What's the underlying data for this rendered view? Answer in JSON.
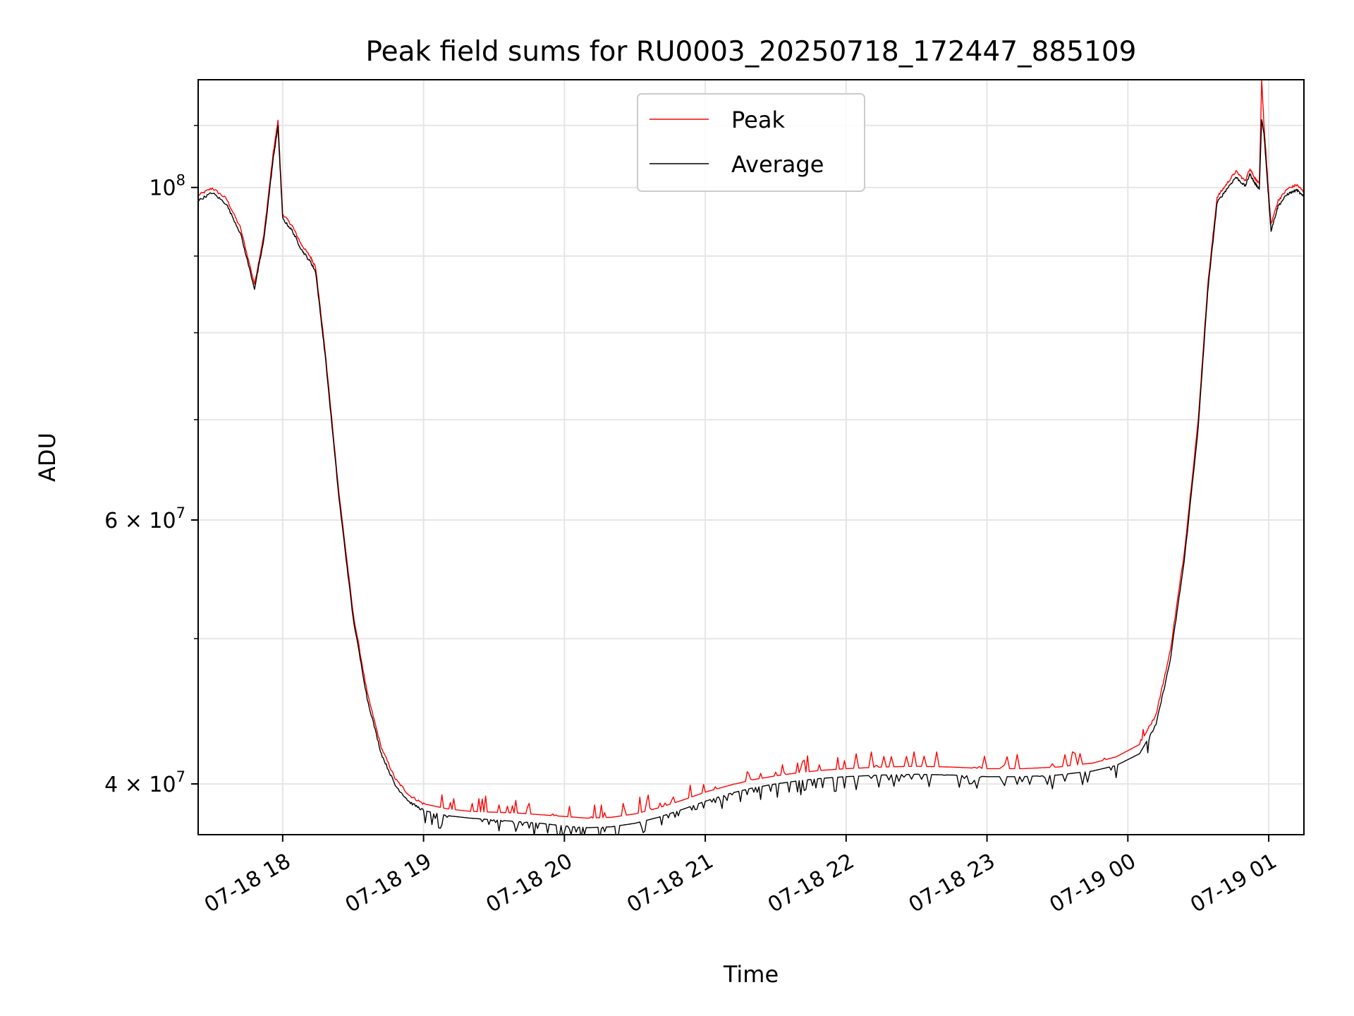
{
  "chart_data": {
    "type": "line",
    "title": "Peak field sums for RU0003_20250718_172447_885109",
    "xlabel": "Time",
    "ylabel": "ADU",
    "yscale": "log",
    "grid": true,
    "legend_position": "top-center",
    "xlim": [
      "2025-07-18 17:24",
      "2025-07-19 01:15"
    ],
    "ylim": [
      37000000,
      118000000
    ],
    "x_ticks": [
      "07-18 18",
      "07-18 19",
      "07-18 20",
      "07-18 21",
      "07-18 22",
      "07-18 23",
      "07-19 00",
      "07-19 01"
    ],
    "y_ticks": [
      {
        "value": 100000000,
        "base": "10",
        "exp": "8"
      },
      {
        "value": 60000000,
        "base": "6 × 10",
        "exp": "7"
      },
      {
        "value": 40000000,
        "base": "4 × 10",
        "exp": "7"
      }
    ],
    "series": [
      {
        "name": "Peak",
        "color": "#ff0000",
        "points": [
          [
            "2025-07-18 17:24",
            98800000
          ],
          [
            "2025-07-18 17:30",
            99900000
          ],
          [
            "2025-07-18 17:36",
            98300000
          ],
          [
            "2025-07-18 17:42",
            94000000
          ],
          [
            "2025-07-18 17:48",
            86200000
          ],
          [
            "2025-07-18 17:52",
            93000000
          ],
          [
            "2025-07-18 17:56",
            105500000
          ],
          [
            "2025-07-18 17:58",
            110800000
          ],
          [
            "2025-07-18 18:00",
            96000000
          ],
          [
            "2025-07-18 18:04",
            94300000
          ],
          [
            "2025-07-18 18:08",
            91600000
          ],
          [
            "2025-07-18 18:12",
            89800000
          ],
          [
            "2025-07-18 18:14",
            88500000
          ],
          [
            "2025-07-18 18:18",
            78000000
          ],
          [
            "2025-07-18 18:24",
            62500000
          ],
          [
            "2025-07-18 18:30",
            52000000
          ],
          [
            "2025-07-18 18:36",
            46000000
          ],
          [
            "2025-07-18 18:42",
            42300000
          ],
          [
            "2025-07-18 18:48",
            40300000
          ],
          [
            "2025-07-18 18:54",
            39300000
          ],
          [
            "2025-07-18 19:00",
            38800000
          ],
          [
            "2025-07-18 19:10",
            38500000
          ],
          [
            "2025-07-18 19:20",
            38350000
          ],
          [
            "2025-07-18 19:30",
            38300000
          ],
          [
            "2025-07-18 19:40",
            38250000
          ],
          [
            "2025-07-18 19:50",
            38150000
          ],
          [
            "2025-07-18 20:00",
            38050000
          ],
          [
            "2025-07-18 20:10",
            37950000
          ],
          [
            "2025-07-18 20:20",
            38000000
          ],
          [
            "2025-07-18 20:30",
            38200000
          ],
          [
            "2025-07-18 20:40",
            38550000
          ],
          [
            "2025-07-18 20:50",
            39000000
          ],
          [
            "2025-07-18 21:00",
            39500000
          ],
          [
            "2025-07-18 21:10",
            39900000
          ],
          [
            "2025-07-18 21:20",
            40250000
          ],
          [
            "2025-07-18 21:30",
            40500000
          ],
          [
            "2025-07-18 21:40",
            40700000
          ],
          [
            "2025-07-18 21:50",
            40850000
          ],
          [
            "2025-07-18 22:00",
            40950000
          ],
          [
            "2025-07-18 22:15",
            41050000
          ],
          [
            "2025-07-18 22:30",
            41100000
          ],
          [
            "2025-07-18 22:45",
            41050000
          ],
          [
            "2025-07-18 23:00",
            40950000
          ],
          [
            "2025-07-18 23:15",
            40950000
          ],
          [
            "2025-07-18 23:30",
            41050000
          ],
          [
            "2025-07-18 23:45",
            41300000
          ],
          [
            "2025-07-18 23:55",
            41700000
          ],
          [
            "2025-07-19 00:05",
            42500000
          ],
          [
            "2025-07-19 00:12",
            44500000
          ],
          [
            "2025-07-19 00:18",
            49000000
          ],
          [
            "2025-07-19 00:24",
            57000000
          ],
          [
            "2025-07-19 00:30",
            70000000
          ],
          [
            "2025-07-19 00:34",
            86000000
          ],
          [
            "2025-07-19 00:38",
            98500000
          ],
          [
            "2025-07-19 00:42",
            100500000
          ],
          [
            "2025-07-19 00:46",
            102500000
          ],
          [
            "2025-07-19 00:50",
            101000000
          ],
          [
            "2025-07-19 00:52",
            103000000
          ],
          [
            "2025-07-19 00:54",
            101500000
          ],
          [
            "2025-07-19 00:56",
            100500000
          ],
          [
            "2025-07-19 00:57",
            118000000
          ],
          [
            "2025-07-19 00:58",
            110000000
          ],
          [
            "2025-07-19 01:00",
            99000000
          ],
          [
            "2025-07-19 01:01",
            94500000
          ],
          [
            "2025-07-19 01:04",
            98000000
          ],
          [
            "2025-07-19 01:08",
            99800000
          ],
          [
            "2025-07-19 01:12",
            100400000
          ],
          [
            "2025-07-19 01:15",
            99300000
          ]
        ]
      },
      {
        "name": "Average",
        "color": "#000000",
        "points": [
          [
            "2025-07-18 17:24",
            98000000
          ],
          [
            "2025-07-18 17:30",
            99200000
          ],
          [
            "2025-07-18 17:36",
            97500000
          ],
          [
            "2025-07-18 17:42",
            93200000
          ],
          [
            "2025-07-18 17:48",
            85600000
          ],
          [
            "2025-07-18 17:52",
            92300000
          ],
          [
            "2025-07-18 17:56",
            104600000
          ],
          [
            "2025-07-18 17:58",
            109800000
          ],
          [
            "2025-07-18 18:00",
            95300000
          ],
          [
            "2025-07-18 18:04",
            93600000
          ],
          [
            "2025-07-18 18:08",
            90900000
          ],
          [
            "2025-07-18 18:12",
            89100000
          ],
          [
            "2025-07-18 18:14",
            87900000
          ],
          [
            "2025-07-18 18:18",
            77500000
          ],
          [
            "2025-07-18 18:24",
            62000000
          ],
          [
            "2025-07-18 18:30",
            51600000
          ],
          [
            "2025-07-18 18:36",
            45600000
          ],
          [
            "2025-07-18 18:42",
            41900000
          ],
          [
            "2025-07-18 18:48",
            39900000
          ],
          [
            "2025-07-18 18:54",
            38900000
          ],
          [
            "2025-07-18 19:00",
            38400000
          ],
          [
            "2025-07-18 19:10",
            38100000
          ],
          [
            "2025-07-18 19:20",
            37950000
          ],
          [
            "2025-07-18 19:30",
            37850000
          ],
          [
            "2025-07-18 19:40",
            37750000
          ],
          [
            "2025-07-18 19:50",
            37650000
          ],
          [
            "2025-07-18 20:00",
            37500000
          ],
          [
            "2025-07-18 20:10",
            37400000
          ],
          [
            "2025-07-18 20:20",
            37450000
          ],
          [
            "2025-07-18 20:30",
            37650000
          ],
          [
            "2025-07-18 20:40",
            38000000
          ],
          [
            "2025-07-18 20:50",
            38450000
          ],
          [
            "2025-07-18 21:00",
            38950000
          ],
          [
            "2025-07-18 21:10",
            39400000
          ],
          [
            "2025-07-18 21:20",
            39750000
          ],
          [
            "2025-07-18 21:30",
            40000000
          ],
          [
            "2025-07-18 21:40",
            40200000
          ],
          [
            "2025-07-18 21:50",
            40350000
          ],
          [
            "2025-07-18 22:00",
            40450000
          ],
          [
            "2025-07-18 22:15",
            40550000
          ],
          [
            "2025-07-18 22:30",
            40600000
          ],
          [
            "2025-07-18 22:45",
            40550000
          ],
          [
            "2025-07-18 23:00",
            40450000
          ],
          [
            "2025-07-18 23:15",
            40450000
          ],
          [
            "2025-07-18 23:30",
            40550000
          ],
          [
            "2025-07-18 23:45",
            40800000
          ],
          [
            "2025-07-18 23:55",
            41150000
          ],
          [
            "2025-07-19 00:05",
            41900000
          ],
          [
            "2025-07-19 00:12",
            43800000
          ],
          [
            "2025-07-19 00:18",
            48300000
          ],
          [
            "2025-07-19 00:24",
            56300000
          ],
          [
            "2025-07-19 00:30",
            69200000
          ],
          [
            "2025-07-19 00:34",
            85200000
          ],
          [
            "2025-07-19 00:38",
            97700000
          ],
          [
            "2025-07-19 00:42",
            99700000
          ],
          [
            "2025-07-19 00:46",
            101600000
          ],
          [
            "2025-07-19 00:50",
            100200000
          ],
          [
            "2025-07-19 00:52",
            102100000
          ],
          [
            "2025-07-19 00:54",
            100700000
          ],
          [
            "2025-07-19 00:56",
            99800000
          ],
          [
            "2025-07-19 00:57",
            111000000
          ],
          [
            "2025-07-19 00:58",
            108500000
          ],
          [
            "2025-07-19 01:00",
            98200000
          ],
          [
            "2025-07-19 01:01",
            93600000
          ],
          [
            "2025-07-19 01:04",
            97200000
          ],
          [
            "2025-07-19 01:08",
            99000000
          ],
          [
            "2025-07-19 01:12",
            99600000
          ],
          [
            "2025-07-19 01:15",
            98500000
          ]
        ]
      }
    ]
  }
}
